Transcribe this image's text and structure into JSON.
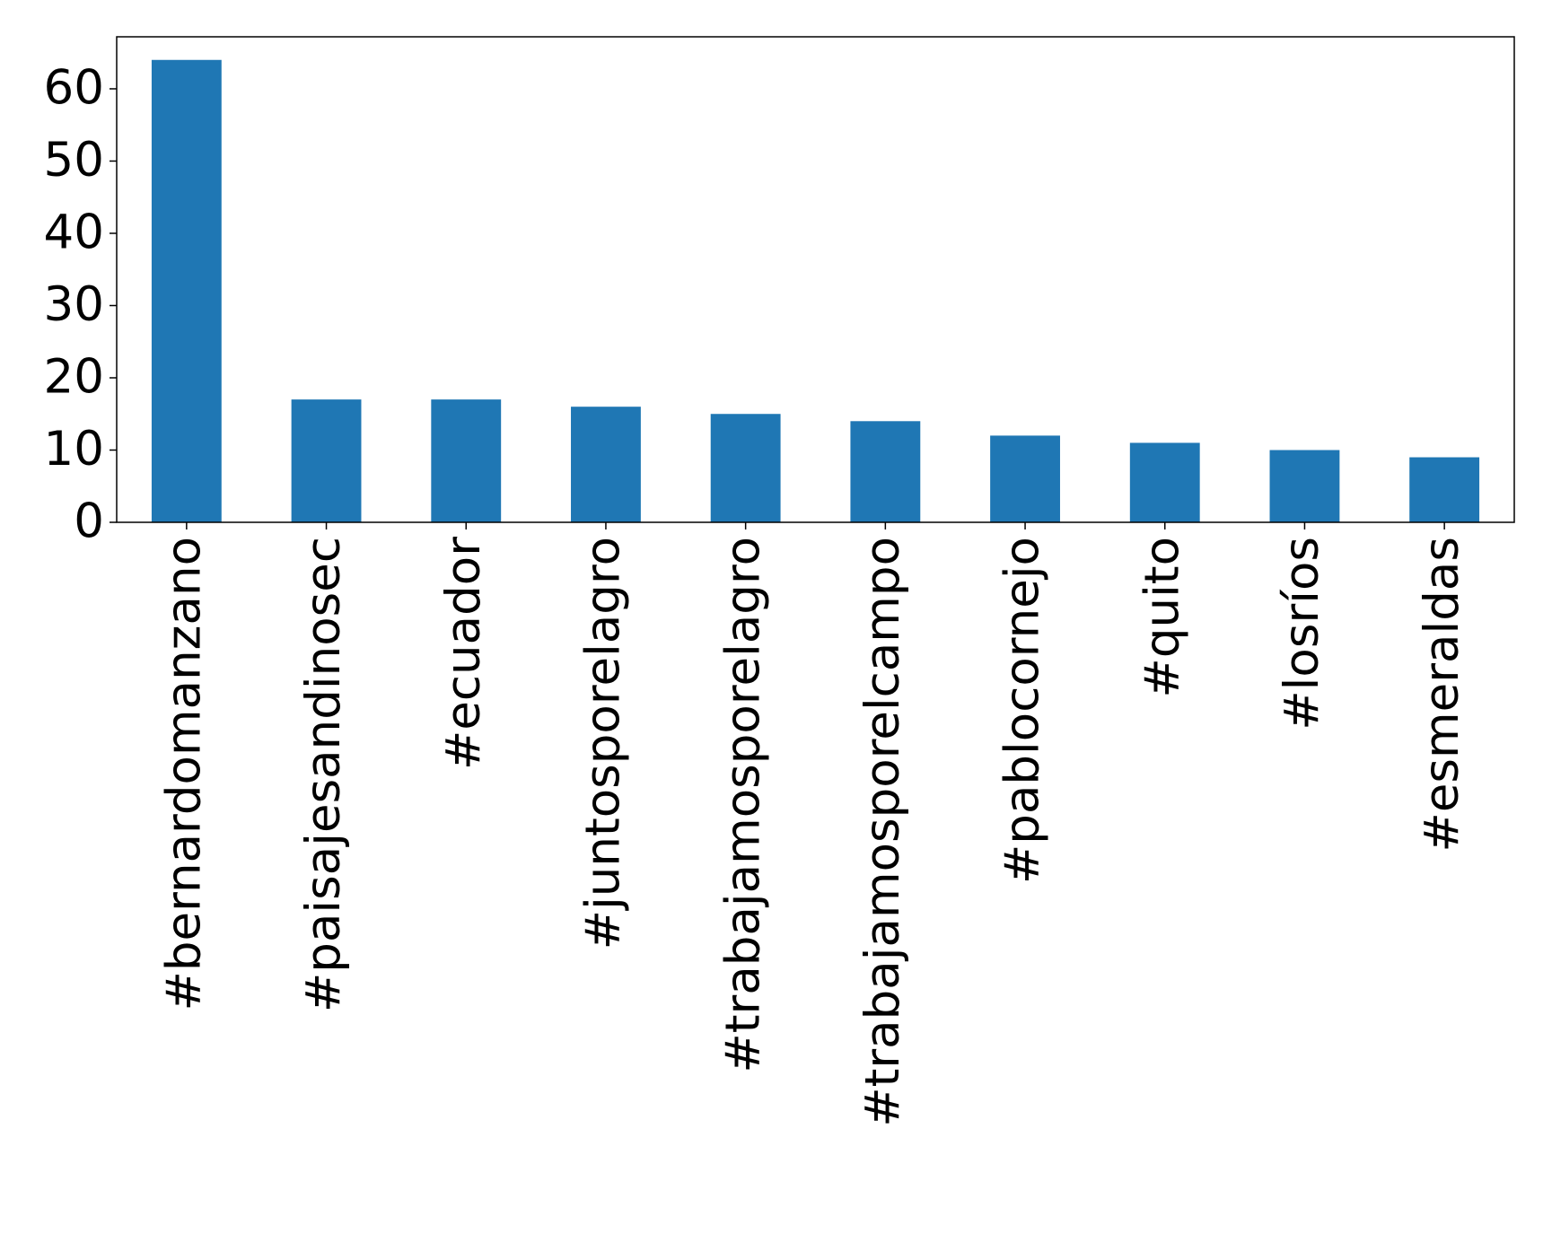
{
  "chart_data": {
    "type": "bar",
    "categories": [
      "#bernardomanzano",
      "#paisajesandinosec",
      "#ecuador",
      "#juntosporelagro",
      "#trabajamosporelagro",
      "#trabajamosporelcampo",
      "#pablocornejo",
      "#quito",
      "#losríos",
      "#esmeraldas"
    ],
    "values": [
      64,
      17,
      17,
      16,
      15,
      14,
      12,
      11,
      10,
      9
    ],
    "color": "#1f77b4",
    "ylim": [
      0,
      67.2
    ],
    "yticks": [
      0,
      10,
      20,
      30,
      40,
      50,
      60
    ],
    "grid": false
  }
}
